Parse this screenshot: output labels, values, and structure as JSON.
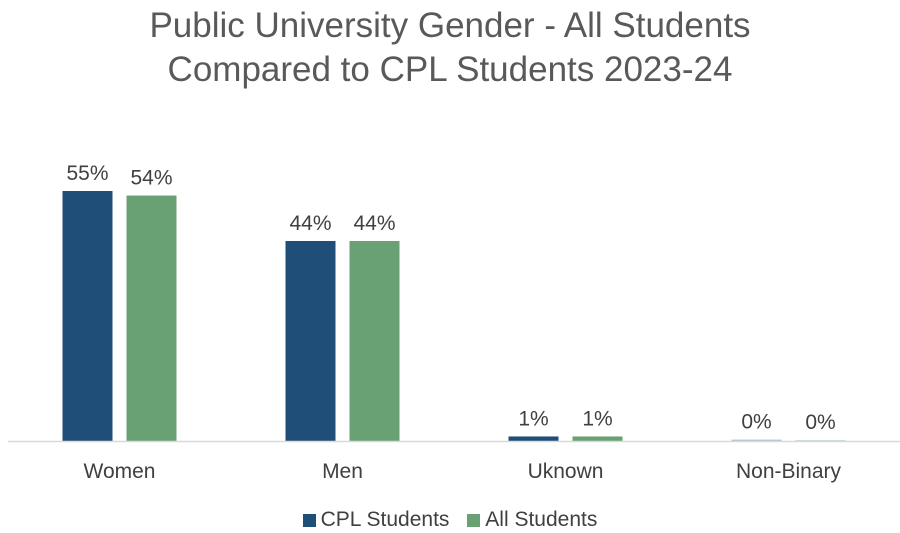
{
  "chart_data": {
    "type": "bar",
    "title_lines": [
      "Public University Gender - All Students",
      "Compared to CPL Students 2023-24"
    ],
    "categories": [
      "Women",
      "Men",
      "Uknown",
      "Non-Binary"
    ],
    "series": [
      {
        "name": "CPL Students",
        "values": [
          55,
          44,
          1,
          0.3
        ],
        "labels": [
          "55%",
          "44%",
          "1%",
          "0%"
        ],
        "color": "#1f4e79"
      },
      {
        "name": "All Students",
        "values": [
          54,
          44,
          1,
          0.2
        ],
        "labels": [
          "54%",
          "44%",
          "1%",
          "0%"
        ],
        "color": "#6aa174"
      }
    ],
    "ylim": [
      0,
      60
    ],
    "grid": false,
    "legend_position": "bottom"
  }
}
